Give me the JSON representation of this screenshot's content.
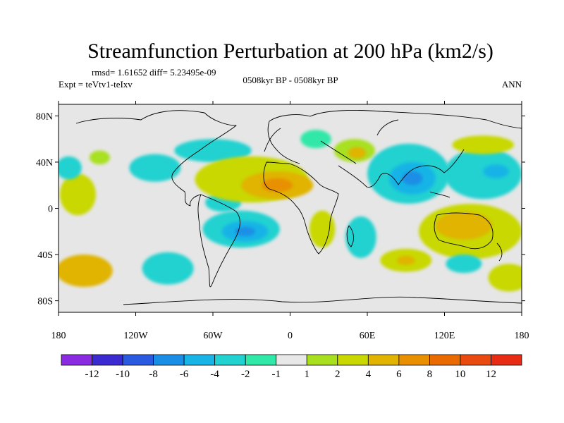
{
  "chart_data": {
    "type": "map-contour",
    "title": "Streamfunction Perturbation at 200 hPa (km2/s)",
    "stats_text": "rmsd= 1.61652 diff= 5.23495e-09",
    "left_label": "Expt = teVtv1-teIxv",
    "center_label": "0508kyr BP - 0508kyr BP",
    "right_label": "ANN",
    "lon_range": [
      -180,
      180
    ],
    "lat_range": [
      -90,
      90
    ],
    "lon_ticks": [
      {
        "value": -180,
        "label": "180"
      },
      {
        "value": -120,
        "label": "120W"
      },
      {
        "value": -60,
        "label": "60W"
      },
      {
        "value": 0,
        "label": "0"
      },
      {
        "value": 60,
        "label": "60E"
      },
      {
        "value": 120,
        "label": "120E"
      },
      {
        "value": 180,
        "label": "180"
      }
    ],
    "lat_ticks": [
      {
        "value": 80,
        "label": "80N"
      },
      {
        "value": 40,
        "label": "40N"
      },
      {
        "value": 0,
        "label": "0"
      },
      {
        "value": -40,
        "label": "40S"
      },
      {
        "value": -80,
        "label": "80S"
      }
    ],
    "colorbar": {
      "colors": [
        "#8a2be2",
        "#3a2ad0",
        "#2a5ae0",
        "#1a8ee6",
        "#18b4e6",
        "#22d2d0",
        "#30e8a8",
        "#e8e8e8",
        "#a8e020",
        "#c8d800",
        "#e0b400",
        "#e89000",
        "#e86a00",
        "#e84a10",
        "#e82c14"
      ],
      "labels": [
        "-12",
        "-10",
        "-8",
        "-6",
        "-4",
        "-2",
        "-1",
        "1",
        "2",
        "4",
        "6",
        "8",
        "10",
        "12"
      ]
    },
    "anomalies": [
      {
        "lon": -165,
        "lat": 12,
        "rx": 14,
        "ry": 18,
        "level": 9
      },
      {
        "lon": -160,
        "lat": -54,
        "rx": 22,
        "ry": 14,
        "level": 10
      },
      {
        "lon": -172,
        "lat": 35,
        "rx": 10,
        "ry": 10,
        "level": 5
      },
      {
        "lon": -148,
        "lat": 44,
        "rx": 8,
        "ry": 6,
        "level": 8
      },
      {
        "lon": -105,
        "lat": 35,
        "rx": 20,
        "ry": 12,
        "level": 5
      },
      {
        "lon": -95,
        "lat": -52,
        "rx": 20,
        "ry": 14,
        "level": 5
      },
      {
        "lon": -60,
        "lat": 50,
        "rx": 30,
        "ry": 10,
        "level": 5
      },
      {
        "lon": -52,
        "lat": 5,
        "rx": 14,
        "ry": 8,
        "level": 5
      },
      {
        "lon": -30,
        "lat": 25,
        "rx": 44,
        "ry": 20,
        "level": 9
      },
      {
        "lon": -10,
        "lat": 20,
        "rx": 28,
        "ry": 12,
        "level": 10
      },
      {
        "lon": -10,
        "lat": 20,
        "rx": 12,
        "ry": 6,
        "level": 11
      },
      {
        "lon": -38,
        "lat": -18,
        "rx": 30,
        "ry": 16,
        "level": 5
      },
      {
        "lon": -35,
        "lat": -20,
        "rx": 18,
        "ry": 9,
        "level": 4
      },
      {
        "lon": -35,
        "lat": -20,
        "rx": 8,
        "ry": 4,
        "level": 3
      },
      {
        "lon": 20,
        "lat": 60,
        "rx": 12,
        "ry": 8,
        "level": 6
      },
      {
        "lon": 50,
        "lat": 50,
        "rx": 16,
        "ry": 10,
        "level": 8
      },
      {
        "lon": 52,
        "lat": 48,
        "rx": 7,
        "ry": 5,
        "level": 10
      },
      {
        "lon": 25,
        "lat": -18,
        "rx": 10,
        "ry": 16,
        "level": 9
      },
      {
        "lon": 55,
        "lat": -25,
        "rx": 12,
        "ry": 18,
        "level": 5
      },
      {
        "lon": 92,
        "lat": 30,
        "rx": 32,
        "ry": 26,
        "level": 5
      },
      {
        "lon": 95,
        "lat": 26,
        "rx": 18,
        "ry": 14,
        "level": 4
      },
      {
        "lon": 95,
        "lat": 26,
        "rx": 8,
        "ry": 6,
        "level": 3
      },
      {
        "lon": 150,
        "lat": 30,
        "rx": 30,
        "ry": 22,
        "level": 5
      },
      {
        "lon": 160,
        "lat": 32,
        "rx": 10,
        "ry": 6,
        "level": 4
      },
      {
        "lon": 150,
        "lat": 55,
        "rx": 24,
        "ry": 8,
        "level": 9
      },
      {
        "lon": 140,
        "lat": -20,
        "rx": 40,
        "ry": 24,
        "level": 9
      },
      {
        "lon": 135,
        "lat": -15,
        "rx": 22,
        "ry": 12,
        "level": 10
      },
      {
        "lon": 90,
        "lat": -45,
        "rx": 20,
        "ry": 10,
        "level": 9
      },
      {
        "lon": 90,
        "lat": -45,
        "rx": 7,
        "ry": 4,
        "level": 10
      },
      {
        "lon": 135,
        "lat": -48,
        "rx": 14,
        "ry": 8,
        "level": 5
      },
      {
        "lon": 170,
        "lat": -60,
        "rx": 16,
        "ry": 12,
        "level": 9
      }
    ]
  }
}
